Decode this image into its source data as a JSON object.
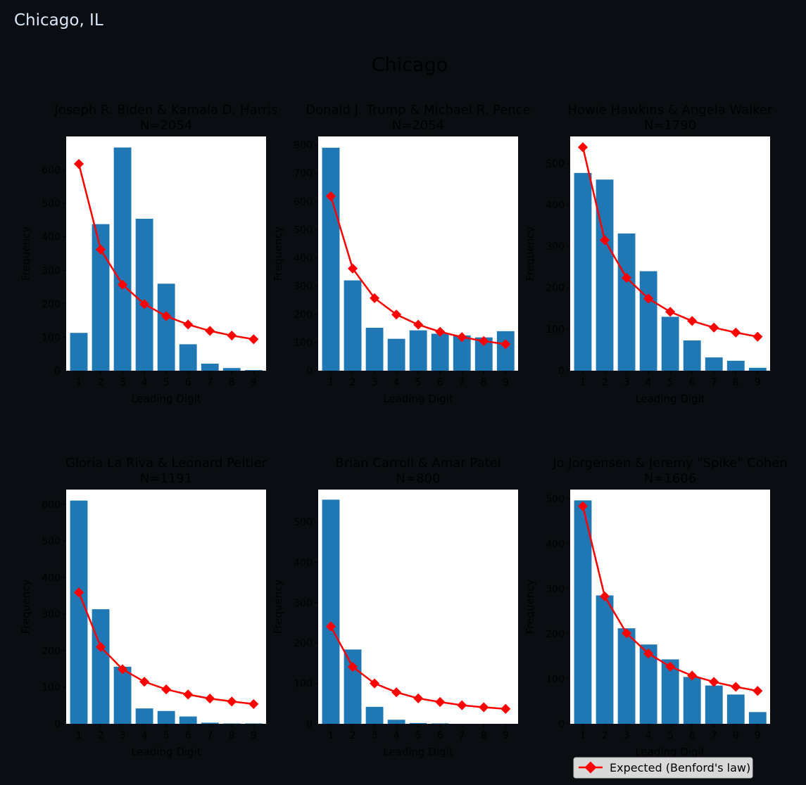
{
  "page": {
    "heading": "Chicago, IL"
  },
  "colors": {
    "bar": "#1f77b4",
    "expected": "#ff0000",
    "background": "#0a0e13",
    "axes": "#ffffff"
  },
  "chart_data": {
    "type": "bar",
    "title": "Chicago",
    "categories": [
      "1",
      "2",
      "3",
      "4",
      "5",
      "6",
      "7",
      "8",
      "9"
    ],
    "xlabel": "Leading Digit",
    "ylabel": "Frequency",
    "legend": {
      "label": "Expected (Benford's law)",
      "position": "bottom-right"
    },
    "grid": false,
    "panels": [
      {
        "title": "Joseph R. Biden & Kamala D. Harris",
        "n_label": "N=2054",
        "ylim": [
          0,
          700
        ],
        "yticks": [
          0,
          100,
          200,
          300,
          400,
          500,
          600
        ],
        "observed": [
          113,
          438,
          667,
          454,
          260,
          79,
          21,
          8,
          2
        ],
        "expected": [
          618,
          362,
          257,
          199,
          163,
          138,
          119,
          105,
          94
        ]
      },
      {
        "title": "Donald J. Trump & Michael R. Pence",
        "n_label": "N=2054",
        "ylim": [
          0,
          830
        ],
        "yticks": [
          0,
          100,
          200,
          300,
          400,
          500,
          600,
          700,
          800
        ],
        "observed": [
          790,
          320,
          152,
          113,
          143,
          131,
          125,
          118,
          140
        ],
        "expected": [
          618,
          362,
          257,
          199,
          163,
          138,
          119,
          105,
          94
        ]
      },
      {
        "title": "Howie Hawkins & Angela Walker",
        "n_label": "N=1790",
        "ylim": [
          0,
          565
        ],
        "yticks": [
          0,
          100,
          200,
          300,
          400,
          500
        ],
        "observed": [
          477,
          461,
          331,
          240,
          130,
          73,
          32,
          24,
          7
        ],
        "expected": [
          539,
          315,
          224,
          174,
          142,
          120,
          104,
          92,
          82
        ]
      },
      {
        "title": "Gloria La Riva & Leonard Peltier",
        "n_label": "N=1191",
        "ylim": [
          0,
          640
        ],
        "yticks": [
          0,
          100,
          200,
          300,
          400,
          500,
          600
        ],
        "observed": [
          610,
          313,
          156,
          42,
          35,
          20,
          3,
          1,
          1
        ],
        "expected": [
          359,
          210,
          149,
          115,
          94,
          80,
          69,
          61,
          54
        ]
      },
      {
        "title": "Brian Carroll & Amar Patel",
        "n_label": "N=800",
        "ylim": [
          0,
          580
        ],
        "yticks": [
          0,
          100,
          200,
          300,
          400,
          500
        ],
        "observed": [
          555,
          184,
          42,
          10,
          2,
          1,
          0,
          0,
          0
        ],
        "expected": [
          241,
          141,
          100,
          78,
          63,
          54,
          46,
          41,
          37
        ]
      },
      {
        "title": "Jo Jorgensen & Jeremy \"Spike\" Cohen",
        "n_label": "N=1606",
        "ylim": [
          0,
          520
        ],
        "yticks": [
          0,
          100,
          200,
          300,
          400,
          500
        ],
        "observed": [
          496,
          285,
          212,
          176,
          143,
          104,
          85,
          65,
          26
        ],
        "expected": [
          483,
          283,
          201,
          156,
          127,
          107,
          93,
          82,
          73
        ]
      }
    ]
  }
}
